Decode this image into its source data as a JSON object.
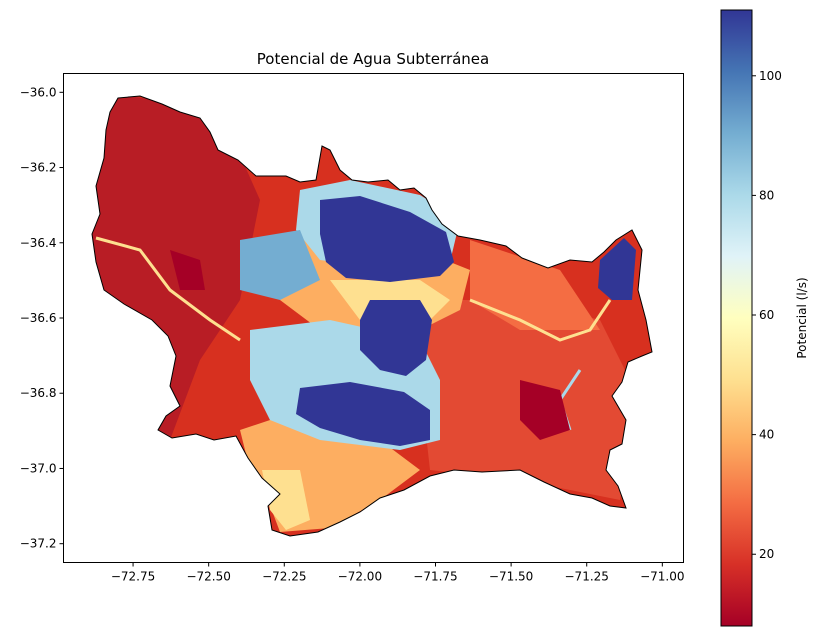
{
  "title": "Potencial de Agua Subterránea",
  "x_axis": {
    "range": [
      -72.98,
      -70.93
    ],
    "ticks": [
      -72.75,
      -72.5,
      -72.25,
      -72.0,
      -71.75,
      -71.5,
      -71.25,
      -71.0
    ],
    "tick_labels": [
      "−72.75",
      "−72.50",
      "−72.25",
      "−72.00",
      "−71.75",
      "−71.50",
      "−71.25",
      "−71.00"
    ]
  },
  "y_axis": {
    "range": [
      -37.25,
      -35.95
    ],
    "ticks": [
      -36.0,
      -36.2,
      -36.4,
      -36.6,
      -36.8,
      -37.0,
      -37.2
    ],
    "tick_labels": [
      "−36.0",
      "−36.2",
      "−36.4",
      "−36.6",
      "−36.8",
      "−37.0",
      "−37.2"
    ]
  },
  "colorbar": {
    "label": "Potencial (l/s)",
    "range": [
      8,
      111
    ],
    "ticks": [
      20,
      40,
      60,
      80,
      100
    ],
    "tick_labels": [
      "20",
      "40",
      "60",
      "80",
      "100"
    ],
    "colormap": "RdYlBu",
    "stops": [
      "#a50026",
      "#d73027",
      "#f46d43",
      "#fdae61",
      "#fee090",
      "#ffffbf",
      "#e0f3f8",
      "#abd9e9",
      "#74add1",
      "#4575b4",
      "#313695"
    ]
  },
  "map": {
    "boundary_color": "#000000",
    "background_color": "#d7301f",
    "high_zone_color": "#313695"
  }
}
